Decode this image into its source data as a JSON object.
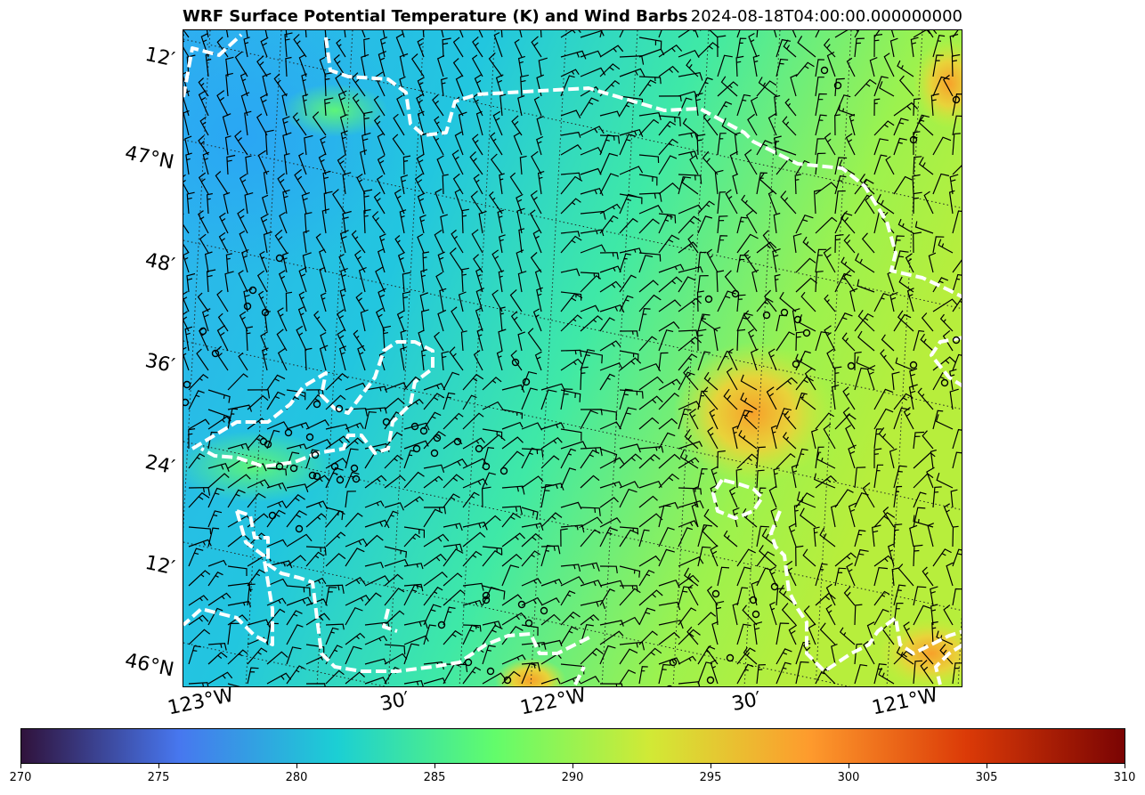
{
  "title": "WRF Surface Potential Temperature (K) and Wind Barbs",
  "timestamp": "2024-08-18T04:00:00.000000000",
  "map": {
    "lat_labels": [
      "12′",
      "47°N",
      "48′",
      "36′",
      "24′",
      "12′",
      "46°N"
    ],
    "lon_labels": [
      "123°W",
      "30′",
      "122°W",
      "30′",
      "121°W"
    ],
    "border_style": "white dashed",
    "gridlines": "dotted"
  },
  "colorbar": {
    "colormap": "turbo",
    "min": 270,
    "max": 310,
    "tick_labels": [
      "270",
      "275",
      "280",
      "285",
      "290",
      "295",
      "300",
      "305",
      "310"
    ],
    "colors": [
      "#30123b",
      "#4777ef",
      "#1bcfd4",
      "#62fc6b",
      "#d2e935",
      "#fe9b2d",
      "#db3a07",
      "#7a0403"
    ]
  }
}
